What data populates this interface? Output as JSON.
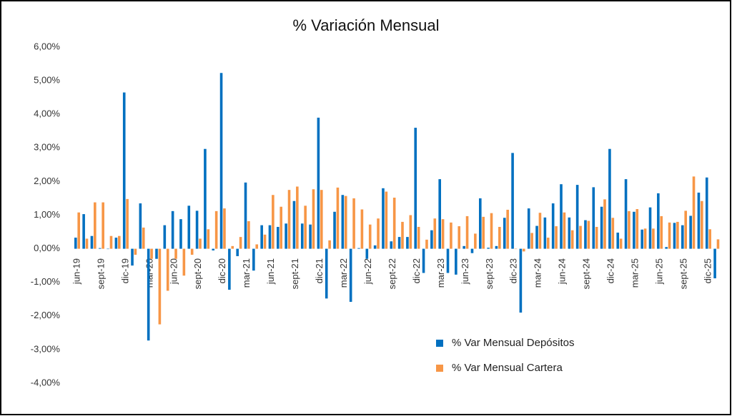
{
  "chart_data": {
    "type": "bar",
    "title": "% Variación Mensual",
    "categories": [
      "jun-19",
      null,
      null,
      "sept-19",
      null,
      null,
      "dic-19",
      null,
      null,
      "mar-20",
      null,
      null,
      "jun-20",
      null,
      null,
      "sept-20",
      null,
      null,
      "dic-20",
      null,
      null,
      "mar-21",
      null,
      null,
      "jun-21",
      null,
      null,
      "sept-21",
      null,
      null,
      "dic-21",
      null,
      null,
      "mar-22",
      null,
      null,
      "jun-22",
      null,
      null,
      "sept-22",
      null,
      null,
      "dic-22",
      null,
      null,
      "mar-23",
      null,
      null,
      "jun-23",
      null,
      null,
      "sept-23",
      null,
      null,
      "dic-23",
      null,
      null,
      "mar-24",
      null,
      null,
      "jun-24",
      null,
      null,
      "sept-24",
      null,
      null,
      "dic-24",
      null,
      null,
      "mar-25",
      null,
      null,
      "jun-25",
      null,
      null,
      "sept-25",
      null,
      null,
      "dic-25",
      null
    ],
    "series": [
      {
        "name": "% Var Mensual Depósitos",
        "color": "#0070c0",
        "values": [
          0.33,
          1.03,
          0.38,
          0.02,
          0.0,
          0.33,
          4.65,
          -0.5,
          1.35,
          -2.73,
          -0.3,
          0.7,
          1.12,
          0.88,
          1.28,
          1.13,
          2.97,
          -0.05,
          5.23,
          -1.22,
          -0.22,
          1.97,
          -0.65,
          0.7,
          0.7,
          0.65,
          0.75,
          1.42,
          0.75,
          0.72,
          3.9,
          -1.48,
          1.1,
          1.6,
          -1.58,
          0.02,
          -0.3,
          0.1,
          1.8,
          0.22,
          0.35,
          0.35,
          3.6,
          -0.72,
          0.55,
          2.07,
          -0.72,
          -0.77,
          0.08,
          -0.13,
          1.5,
          0.03,
          0.08,
          0.92,
          2.85,
          -1.9,
          1.2,
          0.68,
          0.93,
          1.35,
          1.92,
          0.93,
          1.9,
          0.85,
          1.83,
          1.25,
          2.97,
          0.48,
          2.07,
          1.1,
          0.57,
          1.23,
          1.65,
          0.05,
          0.77,
          0.7,
          0.98,
          1.67,
          2.12,
          -0.88
        ]
      },
      {
        "name": "% Var Mensual Cartera",
        "color": "#f79646",
        "values": [
          1.08,
          0.3,
          1.38,
          1.38,
          0.38,
          0.38,
          1.48,
          -0.18,
          0.63,
          -0.3,
          -2.25,
          -1.25,
          -0.3,
          -0.8,
          -0.18,
          0.3,
          0.58,
          1.12,
          1.2,
          0.08,
          0.35,
          0.82,
          0.13,
          0.42,
          1.6,
          1.25,
          1.75,
          1.85,
          1.28,
          1.77,
          1.75,
          0.25,
          1.82,
          1.57,
          1.5,
          1.17,
          0.72,
          0.9,
          1.7,
          1.52,
          0.8,
          1.0,
          0.65,
          0.27,
          0.9,
          0.88,
          0.78,
          0.67,
          0.97,
          0.45,
          0.95,
          1.06,
          0.65,
          1.16,
          0.0,
          -0.08,
          0.47,
          1.07,
          0.33,
          0.67,
          1.08,
          0.55,
          0.68,
          0.83,
          0.65,
          1.47,
          0.92,
          0.3,
          1.12,
          1.18,
          0.6,
          0.6,
          0.97,
          0.78,
          0.8,
          1.13,
          2.15,
          1.42,
          0.58,
          0.28
        ]
      }
    ],
    "ylim": [
      -4,
      6
    ],
    "yticks": [
      {
        "value": -4,
        "label": "-4,00%"
      },
      {
        "value": -3,
        "label": "-3,00%"
      },
      {
        "value": -2,
        "label": "-2,00%"
      },
      {
        "value": -1,
        "label": "-1,00%"
      },
      {
        "value": 0,
        "label": "0,00%"
      },
      {
        "value": 1,
        "label": "1,00%"
      },
      {
        "value": 2,
        "label": "2,00%"
      },
      {
        "value": 3,
        "label": "3,00%"
      },
      {
        "value": 4,
        "label": "4,00%"
      },
      {
        "value": 5,
        "label": "5,00%"
      },
      {
        "value": 6,
        "label": "6,00%"
      }
    ],
    "legend": "lower right"
  }
}
